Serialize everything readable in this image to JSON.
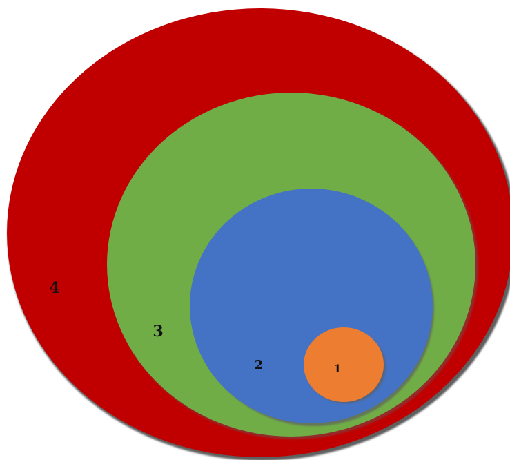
{
  "diagram": {
    "type": "nested-circles",
    "colors": {
      "level_4": "#c00000",
      "level_3": "#70ad47",
      "level_2": "#4472c4",
      "level_1": "#ed7d31",
      "shadow": "#5f5f5f"
    },
    "labels": {
      "level_4": "4",
      "level_3": "3",
      "level_2": "2",
      "level_1": "1"
    }
  }
}
